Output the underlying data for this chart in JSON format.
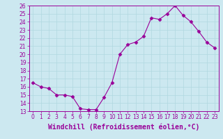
{
  "x": [
    0,
    1,
    2,
    3,
    4,
    5,
    6,
    7,
    8,
    9,
    10,
    11,
    12,
    13,
    14,
    15,
    16,
    17,
    18,
    19,
    20,
    21,
    22,
    23
  ],
  "y": [
    16.5,
    16.0,
    15.8,
    15.0,
    15.0,
    14.8,
    13.3,
    13.2,
    13.2,
    14.7,
    16.5,
    20.0,
    21.2,
    21.5,
    22.2,
    24.5,
    24.3,
    25.0,
    26.0,
    24.8,
    24.0,
    22.8,
    21.5,
    20.8
  ],
  "line_color": "#990099",
  "marker": "D",
  "marker_size": 2.5,
  "bg_color": "#cce8f0",
  "grid_color": "#b0d8e0",
  "xlabel": "Windchill (Refroidissement éolien,°C)",
  "xlabel_fontsize": 7,
  "ylim": [
    13,
    26
  ],
  "xlim": [
    -0.5,
    23.5
  ],
  "yticks": [
    13,
    14,
    15,
    16,
    17,
    18,
    19,
    20,
    21,
    22,
    23,
    24,
    25,
    26
  ],
  "xticks": [
    0,
    1,
    2,
    3,
    4,
    5,
    6,
    7,
    8,
    9,
    10,
    11,
    12,
    13,
    14,
    15,
    16,
    17,
    18,
    19,
    20,
    21,
    22,
    23
  ],
  "tick_fontsize": 5.5,
  "tick_color": "#990099",
  "spine_color": "#990099"
}
